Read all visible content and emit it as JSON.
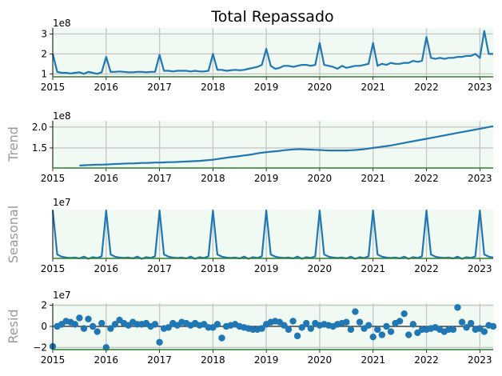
{
  "chart_data": [
    {
      "type": "line",
      "title": "Total Repassado",
      "ylabel": "",
      "offset_text": "1e8",
      "x_ticks": [
        "2015",
        "2016",
        "2017",
        "2018",
        "2019",
        "2020",
        "2021",
        "2022",
        "2023"
      ],
      "xlim": [
        2015.0,
        2023.25
      ],
      "ylim": [
        0.85,
        3.3
      ],
      "y_ticks": [
        "1",
        "2",
        "3"
      ],
      "y_tick_values": [
        1,
        2,
        3
      ],
      "grid": true,
      "x_start": 2015.0,
      "x_step": 0.08333,
      "series": [
        {
          "values": [
            2.0,
            1.1,
            1.05,
            1.05,
            1.02,
            1.05,
            1.08,
            1.0,
            1.1,
            1.05,
            1.0,
            1.08,
            1.85,
            1.1,
            1.1,
            1.12,
            1.1,
            1.08,
            1.08,
            1.1,
            1.1,
            1.08,
            1.1,
            1.1,
            1.95,
            1.15,
            1.15,
            1.12,
            1.15,
            1.15,
            1.15,
            1.12,
            1.15,
            1.12,
            1.12,
            1.15,
            2.0,
            1.2,
            1.2,
            1.15,
            1.18,
            1.2,
            1.18,
            1.2,
            1.25,
            1.3,
            1.35,
            1.45,
            2.25,
            1.4,
            1.25,
            1.3,
            1.4,
            1.4,
            1.35,
            1.4,
            1.45,
            1.45,
            1.4,
            1.45,
            2.55,
            1.45,
            1.4,
            1.35,
            1.25,
            1.4,
            1.3,
            1.35,
            1.4,
            1.4,
            1.45,
            1.5,
            2.55,
            1.4,
            1.5,
            1.45,
            1.55,
            1.5,
            1.5,
            1.55,
            1.55,
            1.65,
            1.6,
            1.65,
            2.85,
            1.8,
            1.75,
            1.8,
            1.75,
            1.8,
            1.8,
            1.85,
            1.85,
            1.9,
            1.9,
            2.0,
            1.8,
            3.15,
            2.0,
            2.0,
            1.95
          ]
        }
      ]
    },
    {
      "type": "line",
      "title": "",
      "ylabel": "Trend",
      "offset_text": "1e8",
      "x_ticks": [
        "2015",
        "2016",
        "2017",
        "2018",
        "2019",
        "2020",
        "2021",
        "2022",
        "2023"
      ],
      "xlim": [
        2015.0,
        2023.25
      ],
      "ylim": [
        1.02,
        2.15
      ],
      "y_ticks": [
        "1.5",
        "2.0"
      ],
      "y_tick_values": [
        1.5,
        2.0
      ],
      "grid": true,
      "x_start": 2015.5,
      "x_step": 0.08333,
      "series": [
        {
          "values": [
            1.08,
            1.085,
            1.09,
            1.095,
            1.1,
            1.1,
            1.105,
            1.11,
            1.115,
            1.12,
            1.125,
            1.13,
            1.13,
            1.135,
            1.14,
            1.14,
            1.145,
            1.15,
            1.15,
            1.155,
            1.16,
            1.16,
            1.165,
            1.17,
            1.175,
            1.18,
            1.185,
            1.19,
            1.2,
            1.21,
            1.22,
            1.235,
            1.25,
            1.265,
            1.28,
            1.29,
            1.305,
            1.32,
            1.335,
            1.35,
            1.37,
            1.385,
            1.4,
            1.41,
            1.42,
            1.43,
            1.445,
            1.455,
            1.465,
            1.47,
            1.47,
            1.465,
            1.46,
            1.455,
            1.45,
            1.445,
            1.44,
            1.44,
            1.44,
            1.44,
            1.44,
            1.445,
            1.45,
            1.46,
            1.47,
            1.485,
            1.5,
            1.515,
            1.53,
            1.545,
            1.56,
            1.58,
            1.6,
            1.62,
            1.64,
            1.66,
            1.68,
            1.7,
            1.72,
            1.74,
            1.76,
            1.78,
            1.8,
            1.82,
            1.84,
            1.86,
            1.88,
            1.9,
            1.92,
            1.94,
            1.96,
            1.98,
            2.0,
            2.02
          ]
        }
      ]
    },
    {
      "type": "line",
      "title": "",
      "ylabel": "Seasonal",
      "offset_text": "1e7",
      "x_ticks": [
        "2015",
        "2016",
        "2017",
        "2018",
        "2019",
        "2020",
        "2021",
        "2022",
        "2023"
      ],
      "xlim": [
        2015.0,
        2023.25
      ],
      "ylim": [
        -1.4,
        9.7
      ],
      "y_ticks": [],
      "y_tick_values": [],
      "grid": true,
      "x_start": 2015.0,
      "x_step": 0.08333,
      "series": [
        {
          "values": [
            9.5,
            -0.5,
            -1.0,
            -1.2,
            -1.3,
            -1.2,
            -1.4,
            -1.0,
            -1.5,
            -1.1,
            -1.3,
            -0.9,
            9.5,
            -0.5,
            -1.0,
            -1.2,
            -1.3,
            -1.2,
            -1.4,
            -1.0,
            -1.5,
            -1.1,
            -1.3,
            -0.9,
            9.5,
            -0.5,
            -1.0,
            -1.2,
            -1.3,
            -1.2,
            -1.4,
            -1.0,
            -1.5,
            -1.1,
            -1.3,
            -0.9,
            9.5,
            -0.5,
            -1.0,
            -1.2,
            -1.3,
            -1.2,
            -1.4,
            -1.0,
            -1.5,
            -1.1,
            -1.3,
            -0.9,
            9.5,
            -0.5,
            -1.0,
            -1.2,
            -1.3,
            -1.2,
            -1.4,
            -1.0,
            -1.5,
            -1.1,
            -1.3,
            -0.9,
            9.5,
            -0.5,
            -1.0,
            -1.2,
            -1.3,
            -1.2,
            -1.4,
            -1.0,
            -1.5,
            -1.1,
            -1.3,
            -0.9,
            9.5,
            -0.5,
            -1.0,
            -1.2,
            -1.3,
            -1.2,
            -1.4,
            -1.0,
            -1.5,
            -1.1,
            -1.3,
            -0.9,
            9.5,
            -0.5,
            -1.0,
            -1.2,
            -1.3,
            -1.2,
            -1.4,
            -1.0,
            -1.5,
            -1.1,
            -1.3,
            -0.9,
            9.5,
            -0.5,
            -1.0,
            -1.2
          ]
        }
      ]
    },
    {
      "type": "scatter",
      "title": "",
      "ylabel": "Resid",
      "offset_text": "1e7",
      "x_ticks": [
        "2015",
        "2016",
        "2017",
        "2018",
        "2019",
        "2020",
        "2021",
        "2022",
        "2023"
      ],
      "xlim": [
        2015.0,
        2023.25
      ],
      "ylim": [
        -2.2,
        2.2
      ],
      "y_ticks": [
        "−2",
        "0",
        "2"
      ],
      "y_tick_values": [
        -2,
        0,
        2
      ],
      "grid": true,
      "x_start": 2015.0,
      "x_step": 0.08333,
      "series": [
        {
          "values": [
            -1.9,
            0.0,
            0.2,
            0.5,
            0.4,
            0.2,
            0.8,
            -0.2,
            0.7,
            0.0,
            -0.5,
            0.3,
            -2.0,
            -0.2,
            0.2,
            0.6,
            0.3,
            0.1,
            0.4,
            0.2,
            0.2,
            0.3,
            0.0,
            0.2,
            -1.5,
            -0.2,
            -0.1,
            0.3,
            0.1,
            0.4,
            0.3,
            0.1,
            0.3,
            0.1,
            0.2,
            -0.1,
            -0.1,
            0.2,
            -1.1,
            0.0,
            0.1,
            0.2,
            0.0,
            -0.1,
            -0.2,
            -0.3,
            -0.3,
            -0.2,
            0.2,
            0.4,
            0.5,
            0.4,
            0.1,
            -0.3,
            0.5,
            -0.9,
            -0.1,
            0.3,
            -0.2,
            0.3,
            0.1,
            0.2,
            0.1,
            0.0,
            0.2,
            0.3,
            0.4,
            -0.3,
            1.4,
            0.4,
            -0.2,
            0.1,
            -1.0,
            -0.3,
            -0.8,
            0.0,
            -0.5,
            0.3,
            0.5,
            1.2,
            -0.8,
            0.2,
            -0.6,
            -0.3,
            -0.3,
            -0.2,
            -0.1,
            -0.3,
            -0.5,
            -0.3,
            -0.3,
            1.8,
            0.4,
            -0.1,
            0.3,
            -0.3,
            -0.2,
            -0.5,
            0.1,
            0.0,
            -0.2,
            -0.1,
            -1.5,
            2.0,
            -0.2,
            0.2,
            -0.6
          ]
        }
      ]
    }
  ],
  "colors": {
    "line": "#1f77b4",
    "axes_bg": "#f0faf2",
    "grid": "#c8c8c8",
    "bottom_spine": "#2e7d32",
    "ylabel": "#999999"
  }
}
